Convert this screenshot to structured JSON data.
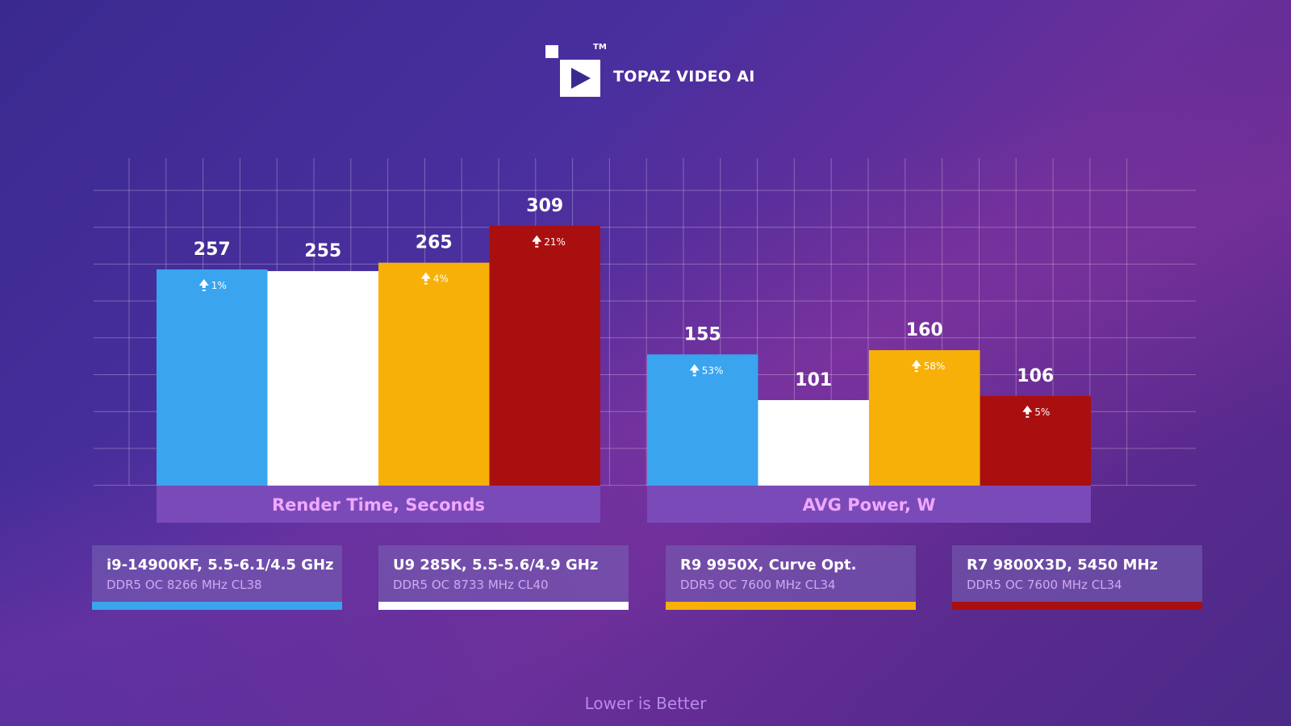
{
  "brand": {
    "title": "TOPAZ VIDEO AI",
    "tm": "TM"
  },
  "footer_note": "Lower is Better",
  "colors": {
    "blue": "#3aa4ee",
    "white": "#ffffff",
    "orange": "#f7b007",
    "red": "#aa0f0f",
    "group_label_bg": "#7a4bb8",
    "group_label_text": "#f0a8ff"
  },
  "legend": [
    {
      "name": "i9-14900KF, 5.5-6.1/4.5 GHz",
      "memory": "DDR5 OC 8266 MHz CL38",
      "color": "#3aa4ee"
    },
    {
      "name": "U9 285K, 5.5-5.6/4.9 GHz",
      "memory": "DDR5 OC 8733 MHz CL40",
      "color": "#ffffff"
    },
    {
      "name": "R9 9950X, Curve Opt.",
      "memory": "DDR5 OC 7600 MHz CL34",
      "color": "#f7b007"
    },
    {
      "name": "R7 9800X3D, 5450 MHz",
      "memory": "DDR5 OC 7600 MHz CL34",
      "color": "#aa0f0f"
    }
  ],
  "chart_data": {
    "type": "bar",
    "grid": true,
    "groups": [
      {
        "label": "Render Time, Seconds",
        "series": [
          {
            "value": 257,
            "delta": "1%",
            "color": "#3aa4ee"
          },
          {
            "value": 255,
            "delta": "",
            "color": "#ffffff"
          },
          {
            "value": 265,
            "delta": "4%",
            "color": "#f7b007"
          },
          {
            "value": 309,
            "delta": "21%",
            "color": "#aa0f0f"
          }
        ]
      },
      {
        "label": "AVG Power, W",
        "series": [
          {
            "value": 155,
            "delta": "53%",
            "color": "#3aa4ee"
          },
          {
            "value": 101,
            "delta": "",
            "color": "#ffffff"
          },
          {
            "value": 160,
            "delta": "58%",
            "color": "#f7b007"
          },
          {
            "value": 106,
            "delta": "5%",
            "color": "#aa0f0f"
          }
        ]
      }
    ]
  }
}
